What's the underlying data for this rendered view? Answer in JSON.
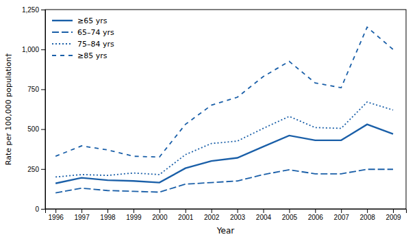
{
  "chart_data": {
    "type": "line",
    "xlabel": "Year",
    "ylabel": "Rate per 100,000 population†",
    "x": [
      1996,
      1997,
      1998,
      1999,
      2000,
      2001,
      2002,
      2003,
      2004,
      2005,
      2006,
      2007,
      2008,
      2009
    ],
    "xlim": [
      1995.6,
      2009.5
    ],
    "xticks": [
      1996,
      1997,
      1998,
      1999,
      2000,
      2001,
      2002,
      2003,
      2004,
      2005,
      2006,
      2007,
      2008,
      2009
    ],
    "ylim": [
      0,
      1250
    ],
    "yticks": [
      0,
      250,
      500,
      750,
      {
        "value": 1000,
        "label": "1,000"
      },
      {
        "value": 1250,
        "label": "1,250"
      }
    ],
    "grid": false,
    "legend": "upper-left",
    "series": [
      {
        "name": "≥65 yrs",
        "color": "#1a5fa8",
        "line_style": "solid",
        "values": [
          160,
          195,
          180,
          175,
          165,
          255,
          300,
          320,
          390,
          460,
          430,
          430,
          530,
          470
        ]
      },
      {
        "name": "65–74 yrs",
        "color": "#1a5fa8",
        "line_style": "dashed",
        "values": [
          100,
          130,
          115,
          110,
          105,
          155,
          165,
          175,
          215,
          245,
          220,
          220,
          248,
          248
        ]
      },
      {
        "name": "75–84 yrs",
        "color": "#1a5fa8",
        "line_style": "dotted",
        "values": [
          200,
          215,
          210,
          225,
          215,
          340,
          410,
          425,
          505,
          580,
          510,
          505,
          670,
          620
        ]
      },
      {
        "name": "≥85 yrs",
        "color": "#1a5fa8",
        "line_style": "loosely-dashed",
        "values": [
          330,
          395,
          370,
          330,
          325,
          530,
          650,
          700,
          830,
          925,
          790,
          760,
          1140,
          1000
        ]
      }
    ]
  }
}
